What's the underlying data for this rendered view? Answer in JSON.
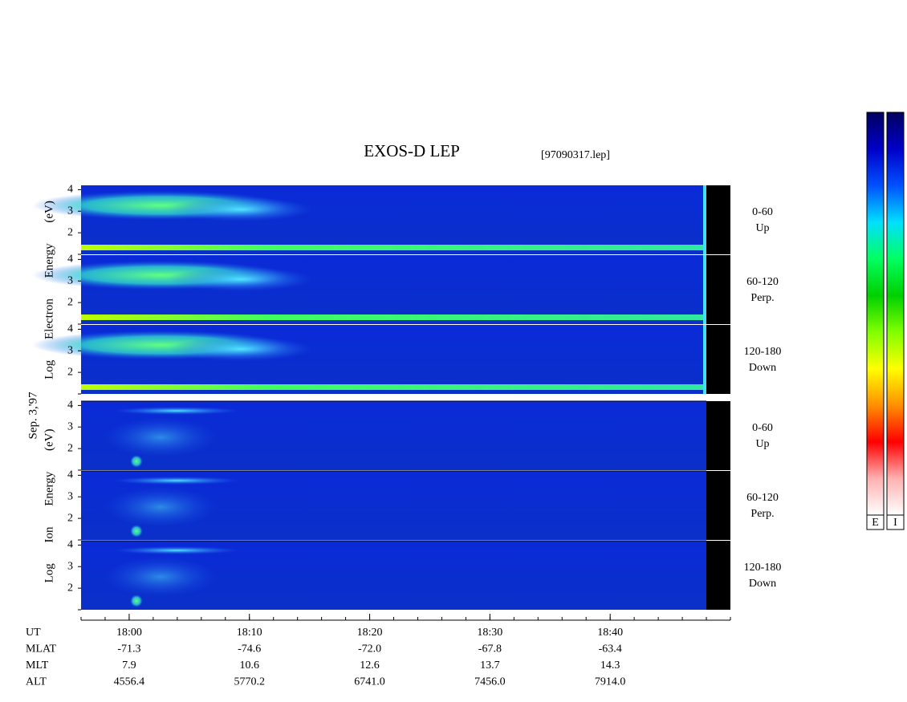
{
  "chart_data": {
    "type": "spectrogram",
    "title": "EXOS-D LEP",
    "file": "[97090317.lep]",
    "date": "Sep. 3,'97",
    "xlim": [
      1076,
      1130
    ],
    "xticks": [
      {
        "value": 1080,
        "label": "18:00"
      },
      {
        "value": 1090,
        "label": "18:10"
      },
      {
        "value": 1100,
        "label": "18:20"
      },
      {
        "value": 1110,
        "label": "18:30"
      },
      {
        "value": 1120,
        "label": "18:40"
      }
    ],
    "ylim": [
      1,
      4.2
    ],
    "yticks": [
      2,
      3,
      4
    ],
    "groups": [
      {
        "ylabel": "Log Electron Energy (eV)",
        "panels": [
          {
            "labels": [
              "0-60",
              "Up"
            ]
          },
          {
            "labels": [
              "60-120",
              "Perp."
            ]
          },
          {
            "labels": [
              "120-180",
              "Down"
            ]
          }
        ]
      },
      {
        "ylabel": "Log Ion Energy (eV)",
        "panels": [
          {
            "labels": [
              "0-60",
              "Up"
            ]
          },
          {
            "labels": [
              "60-120",
              "Perp."
            ]
          },
          {
            "labels": [
              "120-180",
              "Down"
            ]
          }
        ]
      }
    ],
    "ephemeris": [
      {
        "name": "UT"
      },
      {
        "name": "MLAT",
        "values": [
          "-71.3",
          "-74.6",
          "-72.0",
          "-67.8",
          "-63.4"
        ]
      },
      {
        "name": "MLT",
        "values": [
          "7.9",
          "10.6",
          "12.6",
          "13.7",
          "14.3"
        ]
      },
      {
        "name": "ALT",
        "values": [
          "4556.4",
          "5770.2",
          "6741.0",
          "7456.0",
          "7914.0"
        ]
      }
    ],
    "colorbar_labels": [
      "E",
      "I"
    ],
    "colormap": [
      "#000060",
      "#0000c8",
      "#0050ff",
      "#00e0ff",
      "#00ff60",
      "#00d000",
      "#80ff00",
      "#ffff00",
      "#ff9000",
      "#ff0000",
      "#ffb0b0",
      "#ffffff"
    ]
  }
}
